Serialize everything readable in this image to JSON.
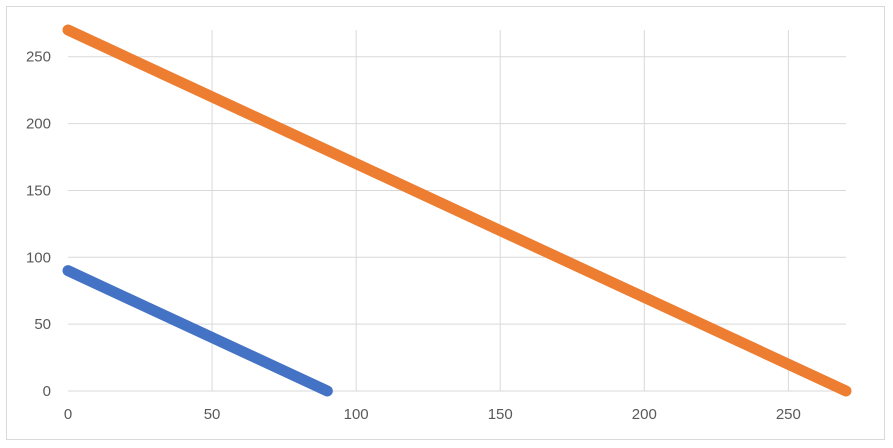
{
  "chart_data": {
    "type": "line",
    "title": "",
    "xlabel": "",
    "ylabel": "",
    "xlim": [
      0,
      270
    ],
    "ylim": [
      0,
      270
    ],
    "x_ticks": [
      0,
      50,
      100,
      150,
      200,
      250
    ],
    "y_ticks": [
      0,
      50,
      100,
      150,
      200,
      250
    ],
    "x_tick_labels": [
      "0",
      "50",
      "100",
      "150",
      "200",
      "250"
    ],
    "y_tick_labels": [
      "0",
      "50",
      "100",
      "150",
      "200",
      "250"
    ],
    "grid": true,
    "legend": "none",
    "series": [
      {
        "color": "#4472c4",
        "points": [
          [
            0,
            90
          ],
          [
            90,
            0
          ]
        ]
      },
      {
        "color": "#ed7d31",
        "points": [
          [
            0,
            270
          ],
          [
            270,
            0
          ]
        ]
      }
    ]
  }
}
